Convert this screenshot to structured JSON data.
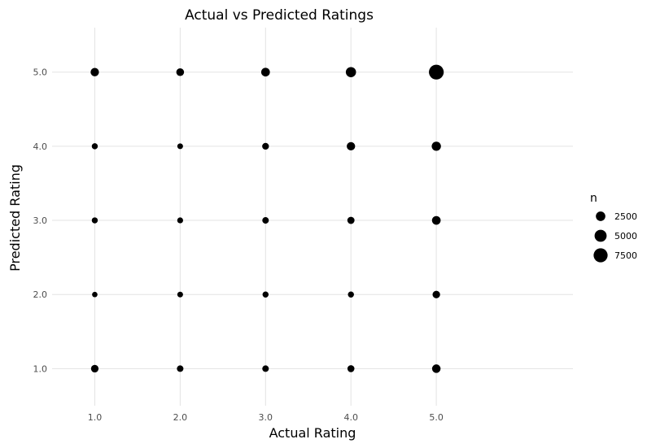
{
  "chart_data": {
    "type": "scatter",
    "title": "Actual vs Predicted Ratings",
    "xlabel": "Actual Rating",
    "ylabel": "Predicted Rating",
    "x_ticks": [
      "1.0",
      "2.0",
      "3.0",
      "4.0",
      "5.0"
    ],
    "y_ticks": [
      "1.0",
      "2.0",
      "3.0",
      "4.0",
      "5.0"
    ],
    "xlim": [
      0.5,
      6.6
    ],
    "ylim": [
      0.5,
      5.6
    ],
    "grid": true,
    "size_legend": {
      "title": "n",
      "position": "right",
      "entries": [
        {
          "label": "2500",
          "value": 2500
        },
        {
          "label": "5000",
          "value": 5000
        },
        {
          "label": "7500",
          "value": 7500
        }
      ]
    },
    "points": [
      {
        "x": 1,
        "y": 5,
        "n": 1700
      },
      {
        "x": 2,
        "y": 5,
        "n": 1300
      },
      {
        "x": 3,
        "y": 5,
        "n": 1900
      },
      {
        "x": 4,
        "y": 5,
        "n": 3100
      },
      {
        "x": 5,
        "y": 5,
        "n": 8600
      },
      {
        "x": 1,
        "y": 4,
        "n": 500
      },
      {
        "x": 2,
        "y": 4,
        "n": 400
      },
      {
        "x": 3,
        "y": 4,
        "n": 800
      },
      {
        "x": 4,
        "y": 4,
        "n": 1700
      },
      {
        "x": 5,
        "y": 4,
        "n": 2300
      },
      {
        "x": 1,
        "y": 3,
        "n": 500
      },
      {
        "x": 2,
        "y": 3,
        "n": 450
      },
      {
        "x": 3,
        "y": 3,
        "n": 700
      },
      {
        "x": 4,
        "y": 3,
        "n": 1000
      },
      {
        "x": 5,
        "y": 3,
        "n": 1900
      },
      {
        "x": 1,
        "y": 2,
        "n": 300
      },
      {
        "x": 2,
        "y": 2,
        "n": 400
      },
      {
        "x": 3,
        "y": 2,
        "n": 500
      },
      {
        "x": 4,
        "y": 2,
        "n": 500
      },
      {
        "x": 5,
        "y": 2,
        "n": 1200
      },
      {
        "x": 1,
        "y": 1,
        "n": 1200
      },
      {
        "x": 2,
        "y": 1,
        "n": 700
      },
      {
        "x": 3,
        "y": 1,
        "n": 700
      },
      {
        "x": 4,
        "y": 1,
        "n": 900
      },
      {
        "x": 5,
        "y": 1,
        "n": 1800
      }
    ]
  }
}
